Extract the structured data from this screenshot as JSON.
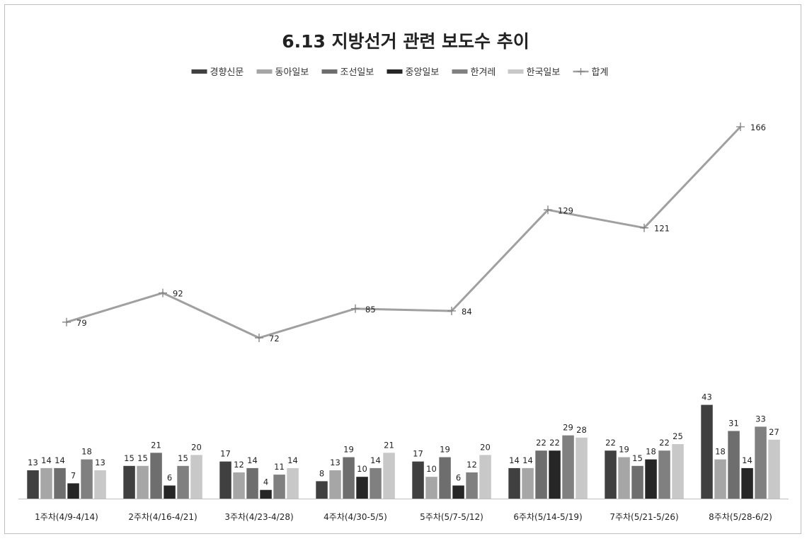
{
  "chart_data": {
    "type": "bar",
    "title": "6.13 지방선거 관련 보도수 추이",
    "categories": [
      "1주차(4/9-4/14)",
      "2주차(4/16-4/21)",
      "3주차(4/23-4/28)",
      "4주차(4/30-5/5)",
      "5주차(5/7-5/12)",
      "6주차(5/14-5/19)",
      "7주차(5/21-5/26)",
      "8주차(5/28-6/2)"
    ],
    "series": [
      {
        "name": "경향신문",
        "color": "#404040",
        "values": [
          13,
          15,
          17,
          8,
          17,
          14,
          22,
          43
        ]
      },
      {
        "name": "동아일보",
        "color": "#a6a6a6",
        "values": [
          14,
          15,
          12,
          13,
          10,
          14,
          19,
          18
        ]
      },
      {
        "name": "조선일보",
        "color": "#6e6e6e",
        "values": [
          14,
          21,
          14,
          19,
          19,
          22,
          15,
          31
        ]
      },
      {
        "name": "중앙일보",
        "color": "#262626",
        "values": [
          7,
          6,
          4,
          10,
          6,
          22,
          18,
          14
        ]
      },
      {
        "name": "한겨레",
        "color": "#808080",
        "values": [
          18,
          15,
          11,
          14,
          12,
          29,
          22,
          33
        ]
      },
      {
        "name": "한국일보",
        "color": "#c8c8c8",
        "values": [
          13,
          20,
          14,
          21,
          20,
          28,
          25,
          27
        ]
      }
    ],
    "line_series": {
      "name": "합계",
      "type": "line",
      "color": "#a0a0a0",
      "values": [
        79,
        92,
        72,
        85,
        84,
        129,
        121,
        166
      ]
    },
    "legend_position": "top",
    "grid": false,
    "data_labels": true
  }
}
